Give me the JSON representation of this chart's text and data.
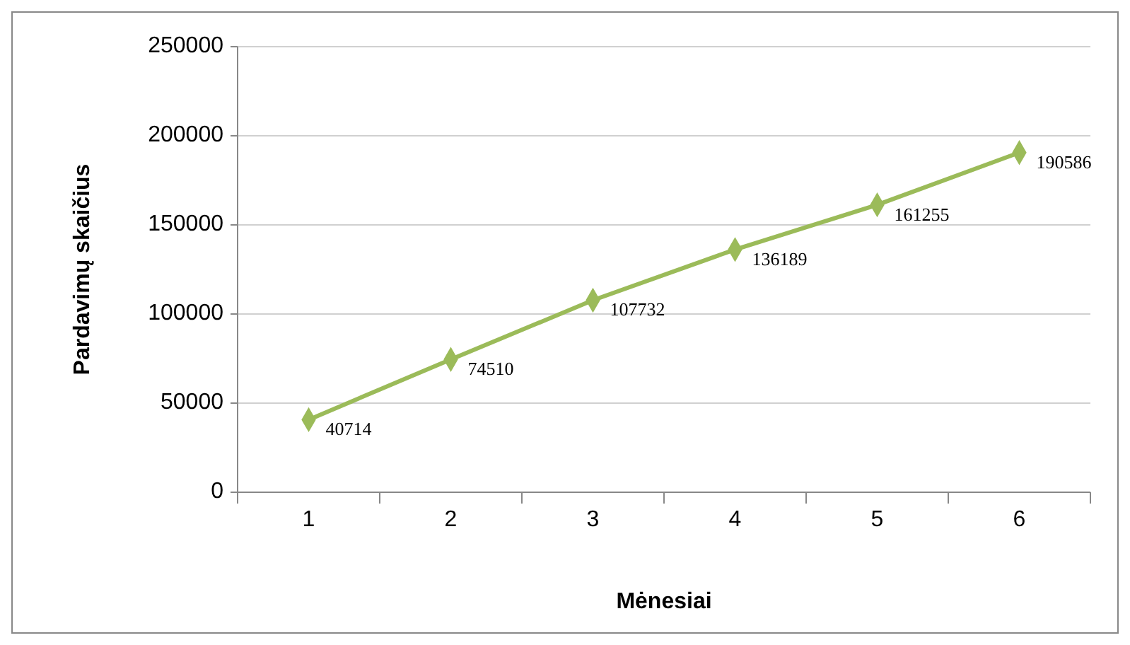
{
  "chart_data": {
    "type": "line",
    "xlabel": "Mėnesiai",
    "ylabel": "Pardavimų skaičius",
    "categories": [
      "1",
      "2",
      "3",
      "4",
      "5",
      "6"
    ],
    "series": [
      {
        "color": "#9bbb59",
        "values": [
          40714,
          74510,
          107732,
          136189,
          161255,
          190586
        ]
      }
    ],
    "ylim": [
      0,
      250000
    ],
    "yticks": [
      0,
      50000,
      100000,
      150000,
      200000,
      250000
    ],
    "grid": "y",
    "marker": "diamond",
    "line_style": "solid",
    "data_labels": true
  }
}
